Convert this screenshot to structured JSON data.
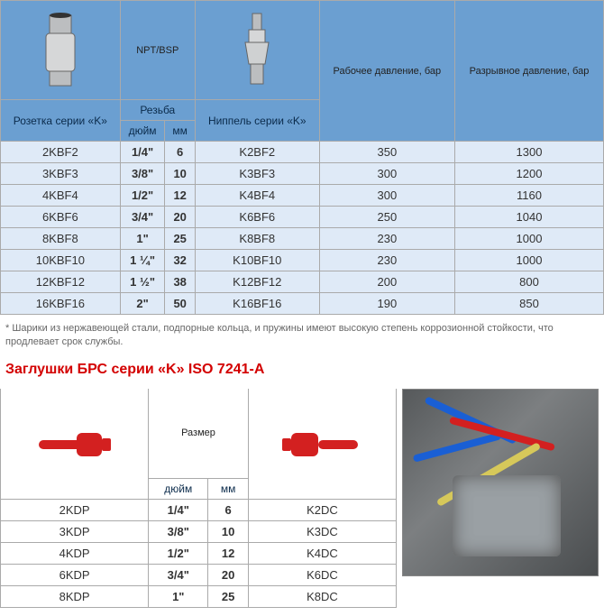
{
  "table1": {
    "header": {
      "img_socket_alt": "socket-k-series",
      "col_npt": "NPT/BSP",
      "img_nipple_alt": "nipple-k-series",
      "col_pressure": "Рабочее давление, бар",
      "col_burst": "Разрывное давление, бар",
      "socket_label": "Розетка серии «K»",
      "thread_label": "Резьба",
      "inch_label": "дюйм",
      "mm_label": "мм",
      "nipple_label": "Ниппель серии «K»"
    },
    "rows": [
      {
        "socket": "2KBF2",
        "inch": "1/4\"",
        "mm": "6",
        "nipple": "K2BF2",
        "press": "350",
        "burst": "1300"
      },
      {
        "socket": "3KBF3",
        "inch": "3/8\"",
        "mm": "10",
        "nipple": "K3BF3",
        "press": "300",
        "burst": "1200"
      },
      {
        "socket": "4KBF4",
        "inch": "1/2\"",
        "mm": "12",
        "nipple": "K4BF4",
        "press": "300",
        "burst": "1160"
      },
      {
        "socket": "6KBF6",
        "inch": "3/4\"",
        "mm": "20",
        "nipple": "K6BF6",
        "press": "250",
        "burst": "1040"
      },
      {
        "socket": "8KBF8",
        "inch": "1\"",
        "mm": "25",
        "nipple": "K8BF8",
        "press": "230",
        "burst": "1000"
      },
      {
        "socket": "10KBF10",
        "inch": "1 ¼\"",
        "mm": "32",
        "nipple": "K10BF10",
        "press": "230",
        "burst": "1000"
      },
      {
        "socket": "12KBF12",
        "inch": "1 ½\"",
        "mm": "38",
        "nipple": "K12BF12",
        "press": "200",
        "burst": "800"
      },
      {
        "socket": "16KBF16",
        "inch": "2\"",
        "mm": "50",
        "nipple": "K16BF16",
        "press": "190",
        "burst": "850"
      }
    ],
    "footnote": "* Шарики из нержавеющей стали, подпорные кольца, и пружины имеют высокую степень коррозионной стойкости, что продлевает срок службы."
  },
  "section2_title": "Заглушки БРС серии «K» ISO 7241-А",
  "table2": {
    "header": {
      "img_plug_alt": "red-dust-plug",
      "size_label": "Размер",
      "inch_label": "дюйм",
      "mm_label": "мм",
      "img_cap_alt": "red-dust-cap"
    },
    "rows": [
      {
        "plug": "2KDP",
        "inch": "1/4\"",
        "mm": "6",
        "cap": "K2DC"
      },
      {
        "plug": "3KDP",
        "inch": "3/8\"",
        "mm": "10",
        "cap": "K3DC"
      },
      {
        "plug": "4KDP",
        "inch": "1/2\"",
        "mm": "12",
        "cap": "K4DC"
      },
      {
        "plug": "6KDP",
        "inch": "3/4\"",
        "mm": "20",
        "cap": "K6DC"
      },
      {
        "plug": "8KDP",
        "inch": "1\"",
        "mm": "25",
        "cap": "K8DC"
      }
    ]
  },
  "colors": {
    "header_bg": "#6b9fd1",
    "row_bg": "#dfeaf7",
    "title_red": "#d30000",
    "plug_red": "#d32020"
  }
}
